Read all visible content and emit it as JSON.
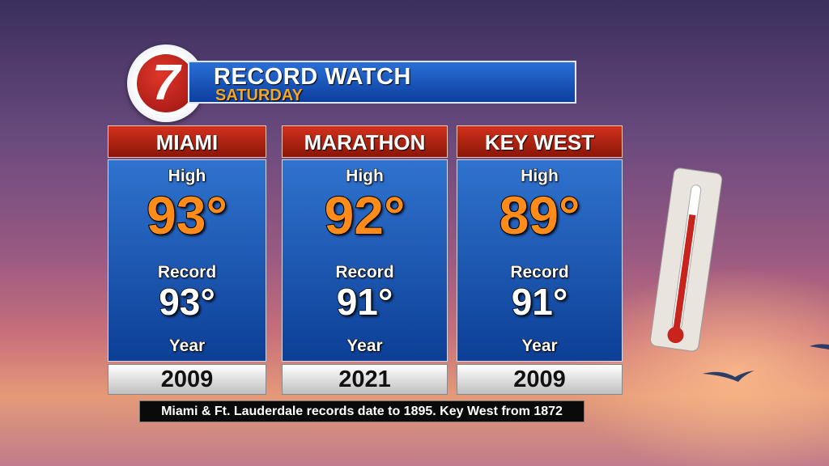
{
  "header": {
    "logo": "7",
    "title": "RECORD WATCH",
    "subtitle": "SATURDAY"
  },
  "cards": [
    {
      "city": "MIAMI",
      "high_label": "High",
      "high": "93°",
      "record_label": "Record",
      "record": "93°",
      "year_label": "Year",
      "year": "2009"
    },
    {
      "city": "MARATHON",
      "high_label": "High",
      "high": "92°",
      "record_label": "Record",
      "record": "91°",
      "year_label": "Year",
      "year": "2021"
    },
    {
      "city": "KEY WEST",
      "high_label": "High",
      "high": "89°",
      "record_label": "Record",
      "record": "91°",
      "year_label": "Year",
      "year": "2009"
    }
  ],
  "footnote": "Miami & Ft. Lauderdale records date to 1895. Key West from 1872"
}
